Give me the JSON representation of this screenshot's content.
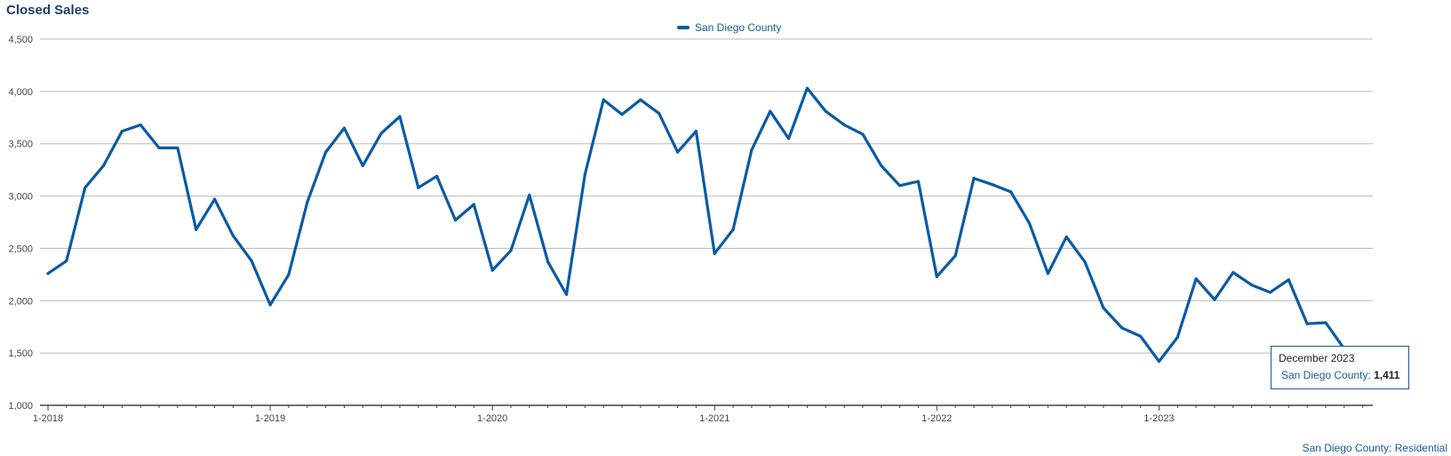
{
  "title": "Closed Sales",
  "legend": {
    "label": "San Diego County",
    "color": "#0a5aa3"
  },
  "source_label": "San Diego County: Residential",
  "tooltip": {
    "date": "December 2023",
    "series": "San Diego County:",
    "value": "1,411"
  },
  "chart_data": {
    "type": "line",
    "title": "Closed Sales",
    "xlabel": "",
    "ylabel": "",
    "ylim": [
      1000,
      4500
    ],
    "y_ticks": [
      "1,000",
      "1,500",
      "2,000",
      "2,500",
      "3,000",
      "3,500",
      "4,000",
      "4,500"
    ],
    "x_ticks": [
      "1-2018",
      "1-2019",
      "1-2020",
      "1-2021",
      "1-2022",
      "1-2023"
    ],
    "grid": true,
    "legend_position": "top-center",
    "x": [
      "2018-01",
      "2018-02",
      "2018-03",
      "2018-04",
      "2018-05",
      "2018-06",
      "2018-07",
      "2018-08",
      "2018-09",
      "2018-10",
      "2018-11",
      "2018-12",
      "2019-01",
      "2019-02",
      "2019-03",
      "2019-04",
      "2019-05",
      "2019-06",
      "2019-07",
      "2019-08",
      "2019-09",
      "2019-10",
      "2019-11",
      "2019-12",
      "2020-01",
      "2020-02",
      "2020-03",
      "2020-04",
      "2020-05",
      "2020-06",
      "2020-07",
      "2020-08",
      "2020-09",
      "2020-10",
      "2020-11",
      "2020-12",
      "2021-01",
      "2021-02",
      "2021-03",
      "2021-04",
      "2021-05",
      "2021-06",
      "2021-07",
      "2021-08",
      "2021-09",
      "2021-10",
      "2021-11",
      "2021-12",
      "2022-01",
      "2022-02",
      "2022-03",
      "2022-04",
      "2022-05",
      "2022-06",
      "2022-07",
      "2022-08",
      "2022-09",
      "2022-10",
      "2022-11",
      "2022-12",
      "2023-01",
      "2023-02",
      "2023-03",
      "2023-04",
      "2023-05",
      "2023-06",
      "2023-07",
      "2023-08",
      "2023-09",
      "2023-10",
      "2023-11",
      "2023-12"
    ],
    "series": [
      {
        "name": "San Diego County",
        "color": "#0a5aa3",
        "values": [
          2260,
          2380,
          3080,
          3290,
          3620,
          3680,
          3460,
          3460,
          2680,
          2970,
          2620,
          2380,
          1960,
          2250,
          2940,
          3420,
          3650,
          3290,
          3600,
          3760,
          3080,
          3190,
          2770,
          2920,
          2290,
          2480,
          3010,
          2370,
          2060,
          3210,
          3920,
          3780,
          3920,
          3790,
          3420,
          3620,
          2450,
          2680,
          3440,
          3810,
          3550,
          4030,
          3810,
          3680,
          3590,
          3290,
          3100,
          3140,
          2230,
          2430,
          3170,
          3110,
          3040,
          2740,
          2260,
          2610,
          2370,
          1930,
          1740,
          1660,
          1420,
          1650,
          2210,
          2010,
          2270,
          2150,
          2080,
          2200,
          1780,
          1790,
          1540,
          1411
        ]
      }
    ]
  }
}
